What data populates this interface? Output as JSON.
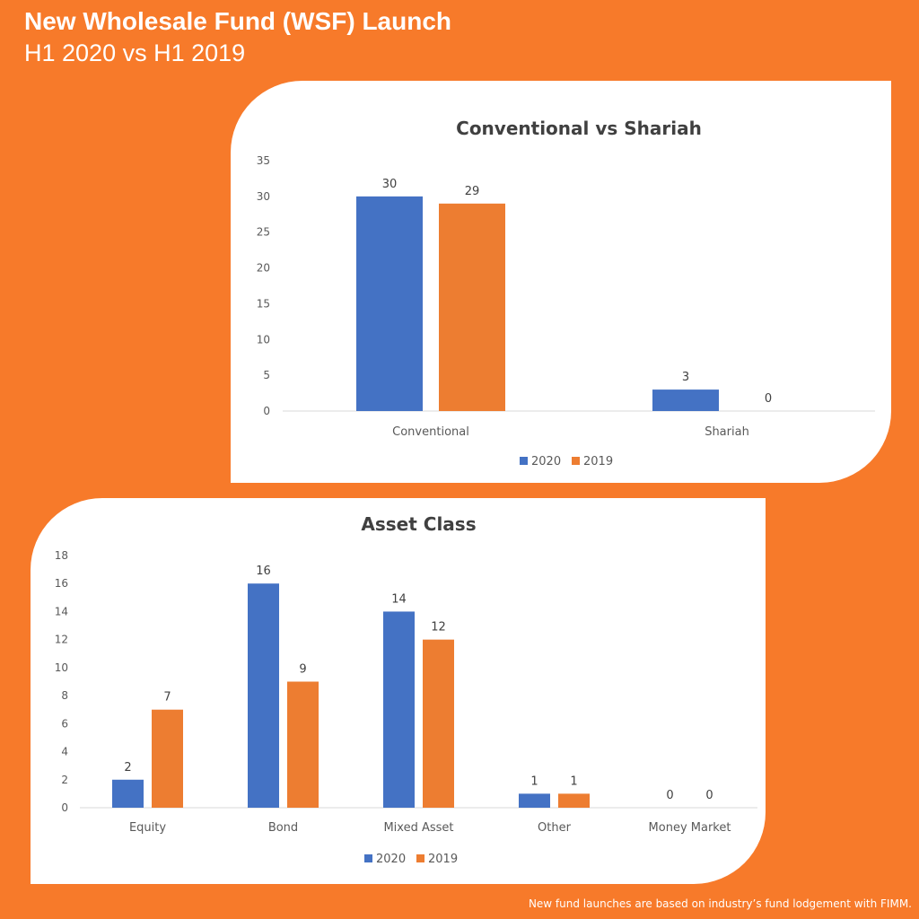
{
  "header": {
    "title": "New Wholesale Fund (WSF) Launch",
    "subtitle": "H1 2020 vs H1 2019"
  },
  "footnote": "New fund launches are based on industry’s fund lodgement with FIMM.",
  "colors": {
    "background": "#F77A2A",
    "series_2020": "#4472C4",
    "series_2019": "#ED7D31"
  },
  "chart_data": [
    {
      "type": "bar",
      "title": "Conventional vs Shariah",
      "categories": [
        "Conventional",
        "Shariah"
      ],
      "series": [
        {
          "name": "2020",
          "values": [
            30,
            3
          ]
        },
        {
          "name": "2019",
          "values": [
            29,
            0
          ]
        }
      ],
      "ylim": [
        0,
        35
      ],
      "yticks": [
        0,
        5,
        10,
        15,
        20,
        25,
        30,
        35
      ],
      "xlabel": "",
      "ylabel": "",
      "grid": false,
      "legend": "bottom"
    },
    {
      "type": "bar",
      "title": "Asset Class",
      "categories": [
        "Equity",
        "Bond",
        "Mixed Asset",
        "Other",
        "Money Market"
      ],
      "series": [
        {
          "name": "2020",
          "values": [
            2,
            16,
            14,
            1,
            0
          ]
        },
        {
          "name": "2019",
          "values": [
            7,
            9,
            12,
            1,
            0
          ]
        }
      ],
      "ylim": [
        0,
        18
      ],
      "yticks": [
        0,
        2,
        4,
        6,
        8,
        10,
        12,
        14,
        16,
        18
      ],
      "xlabel": "",
      "ylabel": "",
      "grid": false,
      "legend": "bottom"
    }
  ]
}
